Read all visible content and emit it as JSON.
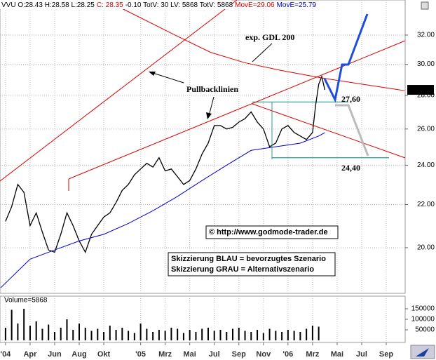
{
  "header": [
    {
      "text": "VVU O:28.43 H:28.58 L:28.25",
      "color": "#000000"
    },
    {
      "text": "C: 28.35",
      "color": "#dd0000"
    },
    {
      "text": "-0.10 TotV: 30 LV: 5868 TotV: 5868",
      "color": "#000000"
    },
    {
      "text": "MovE=29.06",
      "color": "#dd0000"
    },
    {
      "text": "MovE=25.79",
      "color": "#0000cc"
    }
  ],
  "chart_data": [
    {
      "type": "line",
      "log_scale": true,
      "grid": true,
      "xlim": [
        0.55,
        33.54
      ],
      "ylim": [
        18.08,
        34.58
      ],
      "xticks": [
        {
          "value": 1,
          "label": "'04"
        },
        {
          "value": 3,
          "label": "Apr"
        },
        {
          "value": 5,
          "label": "Jun"
        },
        {
          "value": 7,
          "label": "Aug"
        },
        {
          "value": 9,
          "label": "Okt"
        },
        {
          "value": 12,
          "label": "'05"
        },
        {
          "value": 14,
          "label": "Mrz"
        },
        {
          "value": 16,
          "label": "Mai"
        },
        {
          "value": 18,
          "label": "Jul"
        },
        {
          "value": 20,
          "label": "Sep"
        },
        {
          "value": 22,
          "label": "Nov"
        },
        {
          "value": 24,
          "label": "'06"
        },
        {
          "value": 26,
          "label": "Mrz"
        },
        {
          "value": 28,
          "label": "Mai"
        },
        {
          "value": 30,
          "label": "Jul"
        },
        {
          "value": 32,
          "label": "Sep"
        }
      ],
      "yticks": [
        {
          "value": 20,
          "label": "20.00"
        },
        {
          "value": 22,
          "label": "22.00"
        },
        {
          "value": 24,
          "label": "24.00"
        },
        {
          "value": 26,
          "label": "26.00"
        },
        {
          "value": 28,
          "label": "28.00"
        },
        {
          "value": 30,
          "label": "30.00"
        },
        {
          "value": 32,
          "label": "32.00"
        }
      ],
      "series": [
        {
          "color": "#000000",
          "x": [
            1,
            1.5,
            2,
            2.5,
            3,
            3.5,
            4,
            4.5,
            5,
            5.5,
            6,
            6.5,
            7,
            7.5,
            8,
            8.5,
            9,
            9.5,
            10,
            10.5,
            11,
            11.5,
            12,
            12.5,
            13,
            13.5,
            14,
            14.5,
            15,
            15.5,
            16,
            16.5,
            17,
            17.5,
            18,
            18.5,
            19,
            19.5,
            20,
            20.5,
            21,
            21.5,
            22,
            22.5,
            23,
            23.5,
            24,
            24.5,
            25,
            25.5,
            26,
            26.25,
            26.5,
            26.75,
            27
          ],
          "values": [
            21.2,
            21.9,
            23.0,
            22.6,
            21.0,
            21.6,
            20.7,
            19.9,
            19.8,
            20.6,
            21.6,
            21.0,
            20.3,
            19.8,
            20.6,
            21.0,
            21.4,
            21.6,
            22.1,
            22.7,
            23.0,
            23.5,
            23.8,
            24.1,
            23.9,
            24.4,
            23.7,
            23.8,
            23.4,
            23.0,
            23.2,
            23.8,
            24.6,
            25.2,
            26.2,
            26.2,
            26.0,
            26.1,
            26.4,
            26.6,
            27.0,
            26.4,
            26.0,
            25.0,
            25.2,
            26.0,
            26.2,
            25.8,
            25.6,
            25.4,
            25.8,
            27.4,
            28.7,
            29.2,
            28.35
          ]
        },
        {
          "color": "#0000cc",
          "x": [
            0.6,
            3,
            5,
            7,
            9,
            11,
            13,
            15,
            17,
            19,
            21,
            23,
            25,
            26.5,
            27
          ],
          "values": [
            18.3,
            19.5,
            19.9,
            20.3,
            20.6,
            21.1,
            21.7,
            22.4,
            23.2,
            24.0,
            24.8,
            25.0,
            25.2,
            25.6,
            25.79
          ]
        },
        {
          "color": "#dd0000",
          "x": [
            9.7,
            14.8,
            17.7,
            20.5,
            23.4,
            26.8,
            33.5
          ],
          "values": [
            34.3,
            32.0,
            30.8,
            30.1,
            29.6,
            29.1,
            28.3
          ]
        }
      ],
      "last_price": 28.35,
      "levels": [
        {
          "value": 27.6,
          "label": "27,60"
        },
        {
          "value": 24.4,
          "label": "24,40"
        }
      ],
      "annotations": [
        "exp. GDL 200",
        "Pullbacklinien",
        "© http://www.godmode-trader.de",
        "Skizzierung BLAU = bevorzugtes Szenario",
        "Skizzierung GRAU = Alternativszenario"
      ]
    },
    {
      "type": "bar",
      "title": "Volume=5868",
      "color": "#000000",
      "ylim": [
        -10000,
        210000
      ],
      "yticks": [
        50000,
        100000,
        150000
      ],
      "x": [
        1,
        1.5,
        2,
        2.5,
        3,
        3.5,
        4,
        4.5,
        5,
        5.5,
        6,
        6.5,
        7,
        7.5,
        8,
        8.5,
        9,
        9.5,
        10,
        10.5,
        11,
        11.5,
        12,
        12.5,
        13,
        13.5,
        14,
        14.5,
        15,
        15.5,
        16,
        16.5,
        17,
        17.5,
        18,
        18.5,
        19,
        19.5,
        20,
        20.5,
        21,
        21.5,
        22,
        22.5,
        23,
        23.5,
        24,
        24.5,
        25,
        25.5,
        26,
        26.5
      ],
      "values": [
        60000,
        145000,
        80000,
        150000,
        70000,
        90000,
        55000,
        75000,
        40000,
        60000,
        100000,
        50000,
        80000,
        60000,
        45000,
        55000,
        40000,
        70000,
        50000,
        60000,
        45000,
        35000,
        80000,
        55000,
        40000,
        50000,
        45000,
        60000,
        55000,
        35000,
        50000,
        40000,
        55000,
        60000,
        45000,
        50000,
        40000,
        55000,
        60000,
        45000,
        40000,
        50000,
        35000,
        55000,
        45000,
        40000,
        50000,
        45000,
        40000,
        55000,
        70000,
        65000
      ]
    }
  ]
}
